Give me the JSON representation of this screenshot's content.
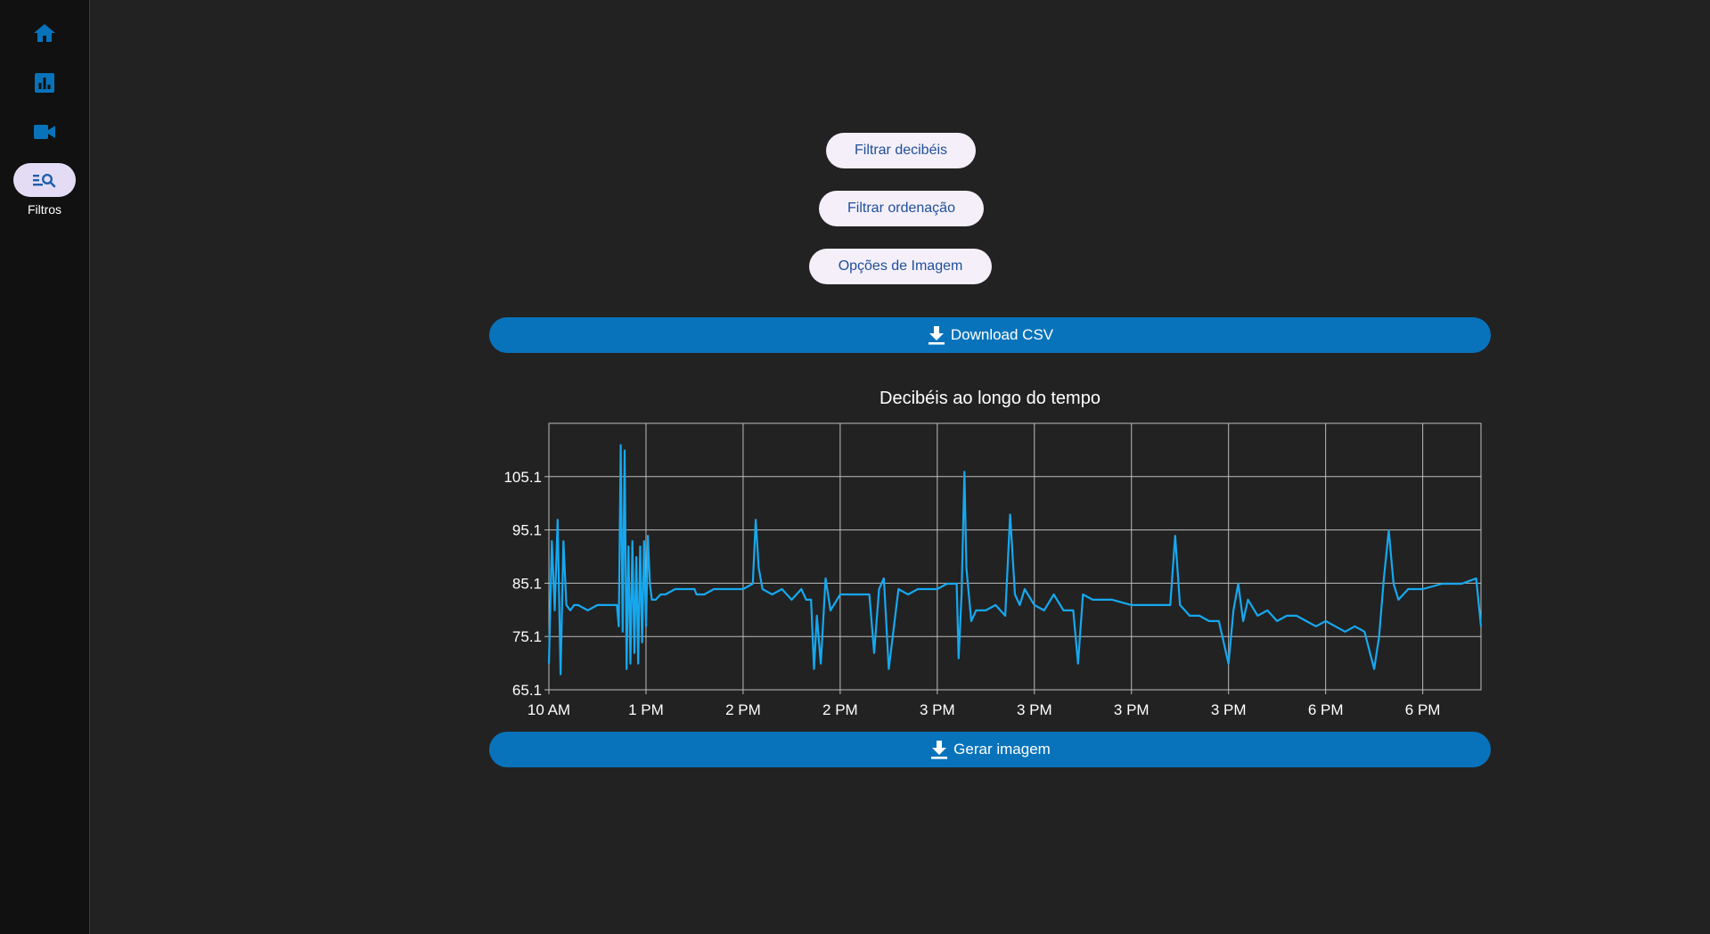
{
  "sidebar": {
    "items": [
      {
        "name": "home",
        "icon": "home-icon",
        "label": ""
      },
      {
        "name": "dashboard",
        "icon": "bar-chart-icon",
        "label": ""
      },
      {
        "name": "video",
        "icon": "video-camera-icon",
        "label": ""
      },
      {
        "name": "filters",
        "icon": "filter-search-icon",
        "label": "Filtros",
        "active": true
      }
    ]
  },
  "main": {
    "filter_decibels_label": "Filtrar decibéis",
    "filter_order_label": "Filtrar ordenação",
    "image_options_label": "Opções de Imagem",
    "download_csv_label": "Download CSV",
    "generate_image_label": "Gerar imagem"
  },
  "colors": {
    "accent": "#0873bb",
    "line": "#16a8ef",
    "pill_bg": "#f4eff9",
    "pill_text": "#1f4f9a",
    "background": "#222222",
    "sidebar_bg": "#111111"
  },
  "chart_data": {
    "type": "line",
    "title": "Decibéis ao longo do tempo",
    "xlabel": "",
    "ylabel": "",
    "ylim": [
      65.1,
      115.1
    ],
    "yticks": [
      65.1,
      75.1,
      85.1,
      95.1,
      105.1
    ],
    "xticks": [
      "10 AM",
      "1 PM",
      "2 PM",
      "2 PM",
      "3 PM",
      "3 PM",
      "3 PM",
      "3 PM",
      "6 PM",
      "6 PM"
    ],
    "xrange": [
      0,
      9.6
    ],
    "grid": true,
    "series": [
      {
        "x": [
          0,
          0.03,
          0.06,
          0.09,
          0.12,
          0.15,
          0.18,
          0.22,
          0.26,
          0.3,
          0.4,
          0.5,
          0.6,
          0.7,
          0.72,
          0.74,
          0.76,
          0.78,
          0.8,
          0.82,
          0.84,
          0.86,
          0.88,
          0.9,
          0.92,
          0.94,
          0.96,
          0.98,
          1.0,
          1.02,
          1.04,
          1.06,
          1.08,
          1.1,
          1.15,
          1.2,
          1.3,
          1.5,
          1.52,
          1.6,
          1.7,
          1.8,
          1.9,
          2.0,
          2.1,
          2.13,
          2.16,
          2.2,
          2.3,
          2.4,
          2.5,
          2.6,
          2.65,
          2.7,
          2.73,
          2.76,
          2.8,
          2.85,
          2.9,
          3.0,
          3.3,
          3.35,
          3.4,
          3.45,
          3.5,
          3.6,
          3.7,
          3.8,
          4.0,
          4.1,
          4.2,
          4.22,
          4.25,
          4.28,
          4.3,
          4.35,
          4.4,
          4.5,
          4.6,
          4.7,
          4.75,
          4.8,
          4.85,
          4.9,
          5.0,
          5.1,
          5.2,
          5.3,
          5.4,
          5.45,
          5.5,
          5.6,
          5.8,
          6.0,
          6.2,
          6.4,
          6.45,
          6.5,
          6.55,
          6.6,
          6.7,
          6.8,
          6.9,
          7.0,
          7.05,
          7.1,
          7.15,
          7.2,
          7.3,
          7.4,
          7.5,
          7.6,
          7.7,
          7.8,
          7.9,
          8.0,
          8.1,
          8.2,
          8.3,
          8.4,
          8.5,
          8.55,
          8.6,
          8.65,
          8.7,
          8.75,
          8.8,
          8.85,
          9.0,
          9.2,
          9.4,
          9.55,
          9.6
        ],
        "y": [
          70,
          93,
          80,
          97,
          68,
          93,
          81,
          80,
          81,
          81,
          80,
          81,
          81,
          81,
          77,
          111,
          76,
          110,
          69,
          92,
          70,
          93,
          72,
          90,
          70,
          92,
          74,
          93,
          77,
          94,
          85,
          82,
          82,
          82,
          83,
          83,
          84,
          84,
          83,
          83,
          84,
          84,
          84,
          84,
          85,
          97,
          88,
          84,
          83,
          84,
          82,
          84,
          82,
          82,
          69,
          79,
          70,
          86,
          80,
          83,
          83,
          72,
          84,
          86,
          69,
          84,
          83,
          84,
          84,
          85,
          85,
          71,
          83,
          106,
          88,
          78,
          80,
          80,
          81,
          79,
          98,
          83,
          81,
          84,
          81,
          80,
          83,
          80,
          80,
          70,
          83,
          82,
          82,
          81,
          81,
          81,
          94,
          81,
          80,
          79,
          79,
          78,
          78,
          70,
          80,
          85,
          78,
          82,
          79,
          80,
          78,
          79,
          79,
          78,
          77,
          78,
          77,
          76,
          77,
          76,
          69,
          75,
          86,
          95,
          85,
          82,
          83,
          84,
          84,
          85,
          85,
          86,
          77
        ]
      }
    ]
  }
}
